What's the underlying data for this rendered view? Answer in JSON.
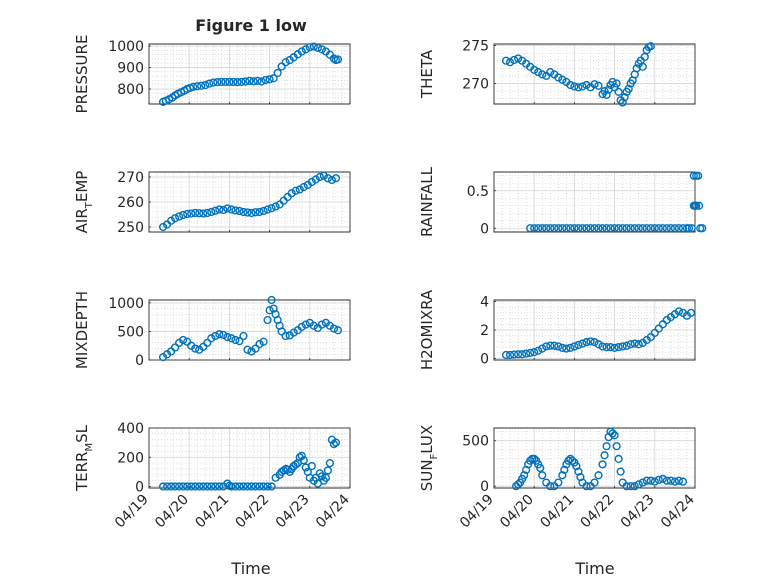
{
  "figure": {
    "title": "Figure 1 low",
    "xlabel": "Time",
    "marker_color": "#0072BD",
    "xtick_labels": [
      "04/19",
      "04/20",
      "04/21",
      "04/22",
      "04/23",
      "04/24"
    ]
  },
  "chart_data": [
    {
      "type": "scatter",
      "id": "pressure",
      "ylabel": "PRESSURE",
      "ylabel_sub": "",
      "xlim": [
        0,
        5
      ],
      "ylim": [
        730,
        1010
      ],
      "yticks": [
        800,
        900,
        1000
      ],
      "ytick_labels": [
        "800",
        "900",
        "1000"
      ],
      "x": [
        0.35,
        0.42,
        0.5,
        0.58,
        0.65,
        0.72,
        0.8,
        0.88,
        0.95,
        1.02,
        1.1,
        1.2,
        1.3,
        1.4,
        1.5,
        1.6,
        1.7,
        1.8,
        1.9,
        2.0,
        2.1,
        2.2,
        2.3,
        2.4,
        2.5,
        2.6,
        2.7,
        2.8,
        2.9,
        3.0,
        3.1,
        3.2,
        3.3,
        3.4,
        3.5,
        3.6,
        3.7,
        3.8,
        3.9,
        4.0,
        4.1,
        4.2,
        4.3,
        4.4,
        4.5,
        4.6,
        4.65,
        4.7
      ],
      "y": [
        740,
        745,
        752,
        760,
        770,
        778,
        785,
        792,
        800,
        805,
        810,
        813,
        815,
        818,
        825,
        830,
        832,
        833,
        833,
        833,
        833,
        832,
        833,
        835,
        838,
        836,
        838,
        835,
        842,
        845,
        850,
        875,
        905,
        925,
        935,
        948,
        962,
        975,
        985,
        995,
        998,
        992,
        985,
        975,
        960,
        942,
        935,
        938
      ]
    },
    {
      "type": "scatter",
      "id": "theta",
      "ylabel": "THETA",
      "ylabel_sub": "",
      "xlim": [
        0,
        5
      ],
      "ylim": [
        267.3,
        275.2
      ],
      "yticks": [
        270,
        275
      ],
      "ytick_labels": [
        "270",
        "275"
      ],
      "x": [
        0.3,
        0.4,
        0.5,
        0.6,
        0.7,
        0.8,
        0.9,
        1.0,
        1.1,
        1.2,
        1.3,
        1.4,
        1.5,
        1.6,
        1.7,
        1.8,
        1.9,
        2.0,
        2.1,
        2.2,
        2.3,
        2.4,
        2.5,
        2.6,
        2.7,
        2.75,
        2.8,
        2.85,
        2.9,
        2.95,
        3.0,
        3.05,
        3.1,
        3.15,
        3.2,
        3.25,
        3.3,
        3.35,
        3.4,
        3.45,
        3.5,
        3.55,
        3.6,
        3.65,
        3.7,
        3.75,
        3.8,
        3.85,
        3.9
      ],
      "y": [
        273.0,
        272.8,
        273.1,
        273.3,
        273.0,
        272.6,
        272.2,
        271.8,
        271.5,
        271.2,
        271.0,
        271.5,
        271.2,
        270.8,
        270.5,
        270.2,
        269.8,
        269.6,
        269.5,
        269.6,
        269.8,
        269.5,
        269.9,
        269.7,
        268.6,
        269.0,
        268.5,
        269.2,
        269.8,
        270.2,
        269.5,
        270.0,
        268.9,
        267.8,
        267.5,
        268.2,
        268.9,
        269.3,
        270.0,
        270.4,
        271.2,
        272.0,
        272.6,
        273.0,
        272.2,
        273.5,
        274.4,
        274.8,
        274.9
      ]
    },
    {
      "type": "scatter",
      "id": "air_temp",
      "ylabel": "AIR",
      "ylabel_sub": "T",
      "ylabel_rest": "EMP",
      "xlim": [
        0,
        5
      ],
      "ylim": [
        248,
        272
      ],
      "yticks": [
        250,
        260,
        270
      ],
      "ytick_labels": [
        "250",
        "260",
        "270"
      ],
      "x": [
        0.35,
        0.45,
        0.55,
        0.65,
        0.75,
        0.85,
        0.95,
        1.05,
        1.15,
        1.25,
        1.35,
        1.45,
        1.55,
        1.65,
        1.75,
        1.85,
        1.95,
        2.05,
        2.15,
        2.25,
        2.35,
        2.45,
        2.55,
        2.65,
        2.75,
        2.85,
        2.95,
        3.05,
        3.15,
        3.25,
        3.35,
        3.45,
        3.55,
        3.65,
        3.75,
        3.85,
        3.95,
        4.05,
        4.15,
        4.25,
        4.35,
        4.45,
        4.55,
        4.65
      ],
      "y": [
        250.0,
        251.0,
        252.5,
        253.5,
        254.2,
        254.8,
        255.2,
        255.4,
        255.6,
        255.5,
        255.4,
        255.6,
        256.0,
        256.5,
        257.0,
        256.8,
        257.4,
        257.0,
        256.6,
        256.4,
        256.0,
        255.8,
        255.6,
        255.9,
        256.0,
        256.4,
        257.0,
        257.5,
        258.2,
        259.0,
        260.5,
        262.0,
        263.5,
        264.5,
        265.0,
        266.0,
        266.8,
        268.0,
        269.0,
        270.0,
        270.5,
        269.5,
        268.8,
        269.5
      ]
    },
    {
      "type": "scatter",
      "id": "rainfall",
      "ylabel": "RAINFALL",
      "ylabel_sub": "",
      "xlim": [
        0,
        5
      ],
      "ylim": [
        -0.05,
        0.75
      ],
      "yticks": [
        0,
        0.5
      ],
      "ytick_labels": [
        "0",
        "0.5"
      ],
      "x": [
        0.9,
        1.0,
        1.1,
        1.2,
        1.3,
        1.4,
        1.5,
        1.6,
        1.7,
        1.8,
        1.9,
        2.0,
        2.1,
        2.2,
        2.3,
        2.4,
        2.5,
        2.6,
        2.7,
        2.8,
        2.9,
        3.0,
        3.1,
        3.2,
        3.3,
        3.4,
        3.5,
        3.6,
        3.7,
        3.8,
        3.9,
        4.0,
        4.1,
        4.2,
        4.3,
        4.4,
        4.5,
        4.6,
        4.7,
        4.8,
        4.85,
        4.92,
        4.97,
        4.97,
        5.0,
        5.03,
        5.03,
        5.08,
        5.1,
        5.13,
        5.18
      ],
      "y": [
        0,
        0,
        0,
        0,
        0,
        0,
        0,
        0,
        0,
        0,
        0,
        0,
        0,
        0,
        0,
        0,
        0,
        0,
        0,
        0,
        0,
        0,
        0,
        0,
        0,
        0,
        0,
        0,
        0,
        0,
        0,
        0,
        0,
        0,
        0,
        0,
        0,
        0,
        0,
        0,
        0,
        0,
        0.3,
        0.7,
        0.3,
        0.7,
        0.3,
        0.7,
        0.3,
        0,
        0
      ]
    },
    {
      "type": "scatter",
      "id": "mixdepth",
      "ylabel": "MIXDEPTH",
      "ylabel_sub": "",
      "xlim": [
        0,
        5
      ],
      "ylim": [
        0,
        1050
      ],
      "yticks": [
        0,
        500,
        1000
      ],
      "ytick_labels": [
        "0",
        "500",
        "1000"
      ],
      "x": [
        0.35,
        0.45,
        0.55,
        0.65,
        0.75,
        0.85,
        0.95,
        1.05,
        1.15,
        1.25,
        1.35,
        1.45,
        1.55,
        1.65,
        1.75,
        1.85,
        1.95,
        2.05,
        2.15,
        2.25,
        2.35,
        2.45,
        2.55,
        2.65,
        2.75,
        2.85,
        2.95,
        3.0,
        3.05,
        3.1,
        3.15,
        3.2,
        3.25,
        3.3,
        3.4,
        3.5,
        3.6,
        3.7,
        3.8,
        3.9,
        4.0,
        4.1,
        4.2,
        4.3,
        4.4,
        4.5,
        4.6,
        4.7
      ],
      "y": [
        50,
        100,
        150,
        220,
        300,
        350,
        320,
        250,
        200,
        180,
        230,
        300,
        380,
        420,
        450,
        440,
        400,
        380,
        350,
        330,
        420,
        180,
        150,
        200,
        280,
        320,
        700,
        870,
        1050,
        900,
        800,
        700,
        600,
        500,
        420,
        430,
        480,
        520,
        580,
        620,
        650,
        600,
        560,
        620,
        650,
        600,
        550,
        520
      ]
    },
    {
      "type": "scatter",
      "id": "h2omixra",
      "ylabel": "H2OMIXRA",
      "ylabel_sub": "",
      "xlim": [
        0,
        5
      ],
      "ylim": [
        -0.1,
        4.1
      ],
      "yticks": [
        0,
        2,
        4
      ],
      "ytick_labels": [
        "0",
        "2",
        "4"
      ],
      "x": [
        0.3,
        0.4,
        0.5,
        0.6,
        0.7,
        0.8,
        0.9,
        1.0,
        1.1,
        1.2,
        1.3,
        1.4,
        1.5,
        1.6,
        1.7,
        1.8,
        1.9,
        2.0,
        2.1,
        2.2,
        2.3,
        2.4,
        2.5,
        2.6,
        2.7,
        2.8,
        2.9,
        3.0,
        3.1,
        3.2,
        3.3,
        3.4,
        3.5,
        3.6,
        3.7,
        3.8,
        3.9,
        4.0,
        4.1,
        4.2,
        4.3,
        4.4,
        4.5,
        4.6,
        4.7,
        4.8,
        4.9
      ],
      "y": [
        0.25,
        0.25,
        0.28,
        0.3,
        0.3,
        0.35,
        0.4,
        0.45,
        0.55,
        0.7,
        0.85,
        0.9,
        0.9,
        0.85,
        0.75,
        0.7,
        0.75,
        0.85,
        0.95,
        1.05,
        1.15,
        1.2,
        1.15,
        1.0,
        0.85,
        0.8,
        0.8,
        0.75,
        0.8,
        0.85,
        0.9,
        1.0,
        1.05,
        1.0,
        1.1,
        1.3,
        1.5,
        1.8,
        2.1,
        2.4,
        2.7,
        2.9,
        3.1,
        3.3,
        3.2,
        3.0,
        3.2
      ]
    },
    {
      "type": "scatter",
      "id": "terr_msl",
      "ylabel": "TERR",
      "ylabel_sub": "M",
      "ylabel_rest": "SL",
      "xlim": [
        0,
        5
      ],
      "ylim": [
        -10,
        400
      ],
      "yticks": [
        0,
        200,
        400
      ],
      "ytick_labels": [
        "0",
        "200",
        "400"
      ],
      "x": [
        0.35,
        0.45,
        0.55,
        0.65,
        0.75,
        0.85,
        0.95,
        1.05,
        1.15,
        1.25,
        1.35,
        1.45,
        1.55,
        1.65,
        1.75,
        1.85,
        1.95,
        2.0,
        2.05,
        2.15,
        2.25,
        2.35,
        2.45,
        2.55,
        2.65,
        2.75,
        2.85,
        2.95,
        3.05,
        3.15,
        3.25,
        3.3,
        3.35,
        3.4,
        3.45,
        3.5,
        3.55,
        3.6,
        3.65,
        3.7,
        3.75,
        3.8,
        3.85,
        3.9,
        3.95,
        4.0,
        4.05,
        4.1,
        4.15,
        4.2,
        4.25,
        4.3,
        4.35,
        4.4,
        4.45,
        4.5,
        4.55,
        4.6,
        4.65
      ],
      "y": [
        0,
        0,
        0,
        0,
        0,
        0,
        0,
        0,
        0,
        0,
        0,
        0,
        0,
        0,
        0,
        0,
        20,
        5,
        0,
        0,
        0,
        0,
        0,
        0,
        0,
        0,
        0,
        0,
        0,
        60,
        80,
        100,
        110,
        120,
        115,
        100,
        120,
        140,
        150,
        160,
        200,
        210,
        180,
        130,
        100,
        60,
        140,
        40,
        60,
        20,
        90,
        70,
        40,
        60,
        110,
        160,
        320,
        290,
        300
      ]
    },
    {
      "type": "scatter",
      "id": "sun_flux",
      "ylabel": "SUN",
      "ylabel_sub": "F",
      "ylabel_rest": "LUX",
      "xlim": [
        0,
        5
      ],
      "ylim": [
        -20,
        640
      ],
      "yticks": [
        0,
        500
      ],
      "ytick_labels": [
        "0",
        "500"
      ],
      "x": [
        0.55,
        0.6,
        0.65,
        0.7,
        0.75,
        0.8,
        0.85,
        0.9,
        0.95,
        1.0,
        1.05,
        1.1,
        1.15,
        1.2,
        1.3,
        1.4,
        1.5,
        1.6,
        1.7,
        1.75,
        1.8,
        1.85,
        1.9,
        1.95,
        2.0,
        2.05,
        2.1,
        2.15,
        2.2,
        2.3,
        2.4,
        2.5,
        2.6,
        2.7,
        2.75,
        2.8,
        2.85,
        2.9,
        2.95,
        3.0,
        3.05,
        3.1,
        3.15,
        3.2,
        3.3,
        3.4,
        3.5,
        3.6,
        3.7,
        3.8,
        3.9,
        4.0,
        4.1,
        4.2,
        4.3,
        4.4,
        4.5,
        4.6,
        4.7
      ],
      "y": [
        0,
        20,
        40,
        80,
        120,
        180,
        240,
        280,
        300,
        300,
        280,
        240,
        200,
        120,
        40,
        0,
        0,
        40,
        120,
        180,
        240,
        280,
        300,
        280,
        260,
        220,
        160,
        100,
        40,
        0,
        0,
        40,
        120,
        240,
        340,
        440,
        540,
        600,
        580,
        560,
        440,
        300,
        160,
        40,
        0,
        0,
        0,
        20,
        40,
        60,
        60,
        50,
        70,
        80,
        60,
        60,
        50,
        60,
        50
      ]
    }
  ]
}
